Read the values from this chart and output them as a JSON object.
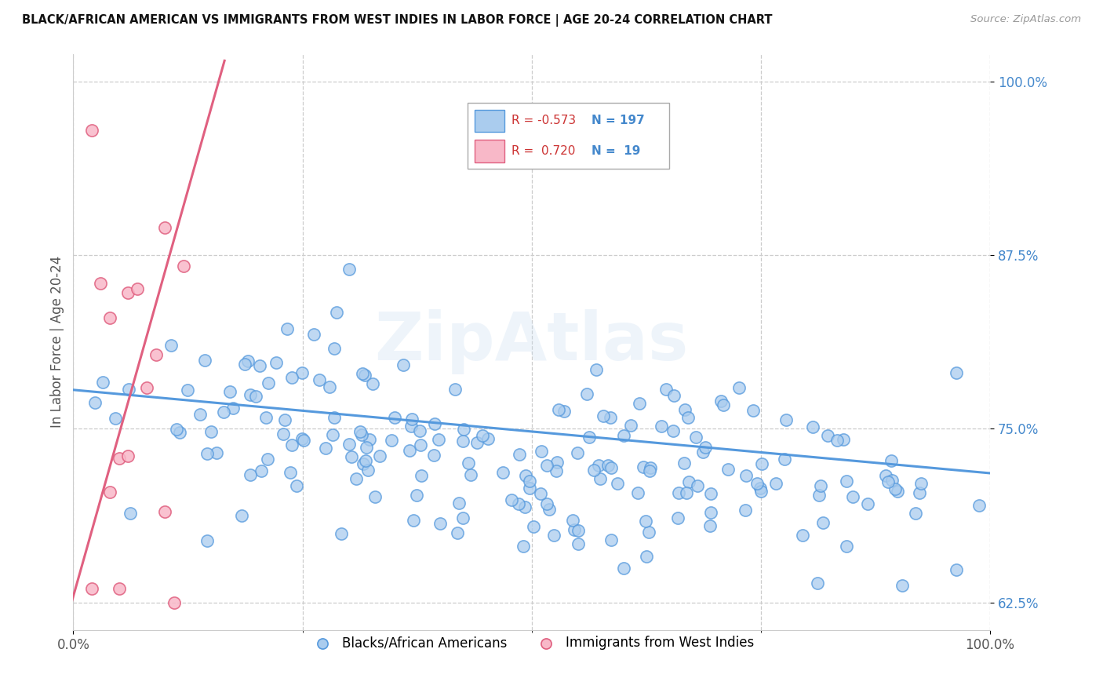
{
  "title": "BLACK/AFRICAN AMERICAN VS IMMIGRANTS FROM WEST INDIES IN LABOR FORCE | AGE 20-24 CORRELATION CHART",
  "source": "Source: ZipAtlas.com",
  "ylabel": "In Labor Force | Age 20-24",
  "watermark": "ZipAtlas",
  "blue_R": -0.573,
  "blue_N": 197,
  "pink_R": 0.72,
  "pink_N": 19,
  "blue_color": "#aaccee",
  "blue_edge_color": "#5599dd",
  "pink_color": "#f8b8c8",
  "pink_edge_color": "#e06080",
  "legend_blue_label": "Blacks/African Americans",
  "legend_pink_label": "Immigrants from West Indies",
  "xlim": [
    0.0,
    1.0
  ],
  "ylim": [
    0.605,
    1.02
  ],
  "yticks": [
    0.625,
    0.75,
    0.875,
    1.0
  ],
  "ytick_labels": [
    "62.5%",
    "75.0%",
    "87.5%",
    "100.0%"
  ],
  "xticks": [
    0.0,
    1.0
  ],
  "xtick_labels": [
    "0.0%",
    "100.0%"
  ],
  "blue_line_x0": 0.0,
  "blue_line_x1": 1.0,
  "blue_line_y0": 0.778,
  "blue_line_y1": 0.718,
  "pink_line_x0": 0.0,
  "pink_line_x1": 0.155,
  "pink_line_y0": 0.63,
  "pink_line_y1": 1.005
}
